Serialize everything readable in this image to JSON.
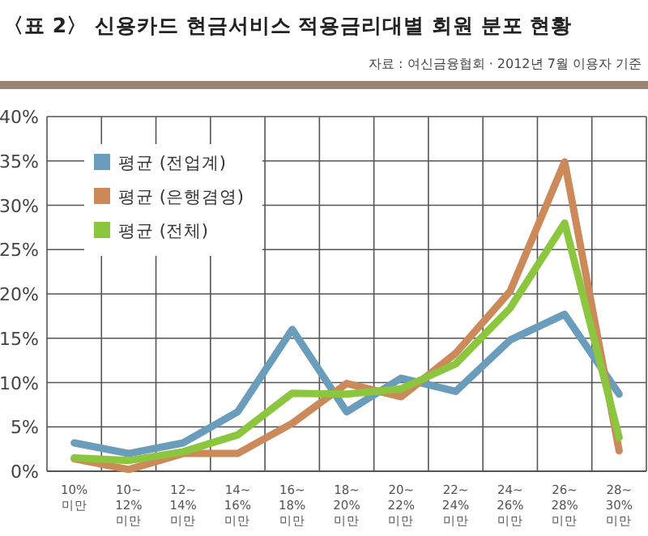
{
  "chart_data": {
    "type": "line",
    "title": "〈표 2〉 신용카드 현금서비스 적용금리대별 회원 분포 현황",
    "subtitle": "자료 : 여신금융협회 · 2012년 7월 이용자 기준",
    "categories": [
      "10%\n미만",
      "10~\n12%\n미만",
      "12~\n14%\n미만",
      "14~\n16%\n미만",
      "16~\n18%\n미만",
      "18~\n20%\n미만",
      "20~\n22%\n미만",
      "22~\n24%\n미만",
      "24~\n26%\n미만",
      "26~\n28%\n미만",
      "28~\n30%\n미만"
    ],
    "series": [
      {
        "name": "평균 (전업계)",
        "color": "#6a9cbb",
        "values": [
          3.2,
          2.0,
          3.2,
          6.7,
          16.0,
          6.7,
          10.5,
          9.0,
          14.8,
          17.7,
          8.7
        ]
      },
      {
        "name": "평균 (은행겸영)",
        "color": "#cc8a5a",
        "values": [
          1.4,
          0.2,
          2.0,
          2.0,
          5.4,
          9.9,
          8.4,
          13.3,
          20.3,
          34.9,
          2.3
        ]
      },
      {
        "name": "평균 (전체)",
        "color": "#8cc63f",
        "values": [
          1.5,
          1.2,
          2.2,
          4.1,
          8.8,
          8.7,
          9.3,
          12.1,
          18.4,
          28.0,
          3.8
        ]
      }
    ],
    "ylim": [
      0,
      40
    ],
    "yticks": [
      {
        "value": 0,
        "label": "0%"
      },
      {
        "value": 5,
        "label": "5%"
      },
      {
        "value": 10,
        "label": "10%"
      },
      {
        "value": 15,
        "label": "15%"
      },
      {
        "value": 20,
        "label": "20%"
      },
      {
        "value": 25,
        "label": "25%"
      },
      {
        "value": 30,
        "label": "30%"
      },
      {
        "value": 35,
        "label": "35%"
      },
      {
        "value": 40,
        "label": "40%"
      }
    ],
    "grid": true,
    "legend": "top left",
    "marker": "none",
    "line_style": "solid"
  }
}
